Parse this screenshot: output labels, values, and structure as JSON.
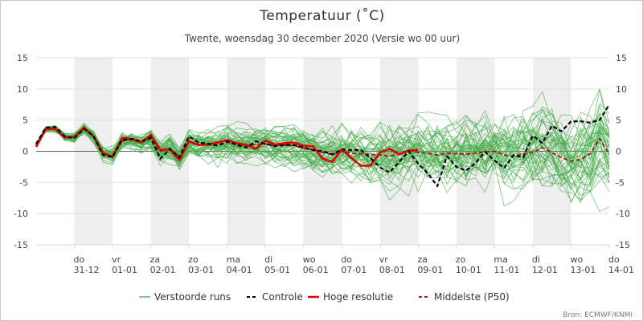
{
  "chart_data": {
    "type": "line",
    "title": "Temperatuur (˚C)",
    "subtitle": "Twente, woensdag 30 december 2020 (Versie wo 00 uur)",
    "credit": "Bron: ECMWF/KNMI",
    "ylim": [
      -15,
      15
    ],
    "yticks": [
      "15",
      "10",
      "5",
      "0",
      "-5",
      "-10",
      "-15"
    ],
    "xlim": [
      0,
      15
    ],
    "grid": "horizontal",
    "legend_position": "bottom",
    "x_axis_days": [
      {
        "day": "do",
        "date": "31-12"
      },
      {
        "day": "vr",
        "date": "01-01"
      },
      {
        "day": "za",
        "date": "02-01"
      },
      {
        "day": "zo",
        "date": "03-01"
      },
      {
        "day": "ma",
        "date": "04-01"
      },
      {
        "day": "di",
        "date": "05-01"
      },
      {
        "day": "wo",
        "date": "06-01"
      },
      {
        "day": "do",
        "date": "07-01"
      },
      {
        "day": "vr",
        "date": "08-01"
      },
      {
        "day": "za",
        "date": "09-01"
      },
      {
        "day": "zo",
        "date": "10-01"
      },
      {
        "day": "ma",
        "date": "11-01"
      },
      {
        "day": "di",
        "date": "12-01"
      },
      {
        "day": "wo",
        "date": "13-01"
      },
      {
        "day": "do",
        "date": "14-01"
      }
    ],
    "colors": {
      "ensemble": "#4caf50",
      "control": "#000000",
      "high_res": "#e00000",
      "median": "#a02020",
      "weekend_shade": "#eeeeee"
    },
    "legend": {
      "ensemble": "Verstoorde runs",
      "control": "Controle",
      "high_res": "Hoge resolutie",
      "median": "Middelste (P50)"
    },
    "series": [
      {
        "name": "Hoge resolutie",
        "x": [
          0,
          0.25,
          0.5,
          0.75,
          1,
          1.25,
          1.5,
          1.75,
          2,
          2.25,
          2.5,
          2.75,
          3,
          3.25,
          3.5,
          3.75,
          4,
          4.25,
          4.5,
          4.75,
          5,
          5.25,
          5.5,
          5.75,
          6,
          6.25,
          6.5,
          6.75,
          7,
          7.25,
          7.5,
          7.75,
          8,
          8.25,
          8.5,
          8.75,
          9,
          9.25,
          9.5,
          9.75,
          10
        ],
        "y": [
          0.7,
          3.6,
          3.6,
          2.2,
          2.3,
          3.8,
          2.4,
          -0.3,
          -0.9,
          2.1,
          2.0,
          1.4,
          2.6,
          0.2,
          0.3,
          -1.4,
          1.6,
          1.0,
          1.1,
          1.4,
          1.8,
          1.3,
          1.0,
          0.4,
          1.7,
          1.1,
          1.3,
          1.4,
          0.9,
          0.8,
          -1.2,
          -1.7,
          0.3,
          -1.1,
          -2.3,
          -2.3,
          -0.2,
          0.4,
          -0.5,
          0.1,
          0.2
        ]
      },
      {
        "name": "Controle",
        "x": [
          0,
          0.25,
          0.5,
          0.75,
          1,
          1.25,
          1.5,
          1.75,
          2,
          2.25,
          2.5,
          2.75,
          3,
          3.25,
          3.5,
          3.75,
          4,
          4.25,
          4.5,
          4.75,
          5,
          5.25,
          5.5,
          5.75,
          6,
          6.25,
          6.5,
          6.75,
          7,
          7.25,
          7.5,
          7.75,
          8,
          8.25,
          8.5,
          8.75,
          9,
          9.25,
          9.5,
          9.75,
          10,
          10.25,
          10.5,
          10.75,
          11,
          11.25,
          11.5,
          11.75,
          12,
          12.25,
          12.5,
          12.75,
          13,
          13.25,
          13.5,
          13.75,
          14,
          14.25,
          14.5,
          14.75,
          15
        ],
        "y": [
          1.2,
          3.8,
          3.9,
          2.4,
          2.1,
          3.6,
          2.5,
          -0.6,
          -0.9,
          1.8,
          2.0,
          1.6,
          2.2,
          -1.2,
          0.4,
          -1.0,
          2.4,
          1.4,
          1.2,
          0.9,
          1.6,
          1.0,
          0.6,
          1.6,
          1.2,
          0.8,
          1.0,
          1.0,
          0.6,
          0.2,
          0.0,
          -0.5,
          0.3,
          0.2,
          0.2,
          -1.1,
          -2.6,
          -3.4,
          -1.7,
          0.0,
          -2.0,
          -3.5,
          -5.6,
          -0.8,
          -2.5,
          -3.1,
          -1.9,
          -0.1,
          -1.5,
          -2.7,
          -0.6,
          -1.0,
          2.5,
          1.3,
          4.1,
          3.2,
          4.8,
          4.8,
          4.6,
          5.0,
          7.5
        ]
      },
      {
        "name": "Middelste (P50)",
        "x": [
          0,
          0.25,
          0.5,
          0.75,
          1,
          1.25,
          1.5,
          1.75,
          2,
          2.25,
          2.5,
          2.75,
          3,
          3.25,
          3.5,
          3.75,
          4,
          4.25,
          4.5,
          4.75,
          5,
          5.25,
          5.5,
          5.75,
          6,
          6.25,
          6.5,
          6.75,
          7,
          7.25,
          7.5,
          7.75,
          8,
          8.25,
          8.5,
          8.75,
          9,
          9.25,
          9.5,
          9.75,
          10,
          10.25,
          10.5,
          10.75,
          11,
          11.25,
          11.5,
          11.75,
          12,
          12.25,
          12.5,
          12.75,
          13,
          13.25,
          13.5,
          13.75,
          14,
          14.25,
          14.5,
          14.75,
          15
        ],
        "y": [
          1.0,
          3.5,
          3.6,
          2.3,
          2.2,
          3.6,
          2.4,
          -0.3,
          -0.7,
          1.7,
          1.8,
          1.4,
          2.0,
          0.0,
          0.4,
          -0.8,
          1.5,
          1.1,
          1.0,
          1.0,
          1.4,
          1.1,
          0.9,
          1.1,
          1.2,
          0.9,
          1.0,
          0.9,
          0.5,
          0.3,
          -0.2,
          -0.5,
          0.0,
          -0.3,
          -0.4,
          -0.5,
          -0.6,
          -0.8,
          -0.4,
          0.1,
          -0.2,
          -0.3,
          -0.6,
          -0.3,
          -0.4,
          -0.5,
          -0.3,
          -0.1,
          0.0,
          -0.6,
          -0.8,
          -0.4,
          -0.2,
          0.6,
          -0.2,
          -1.0,
          -1.6,
          -1.3,
          -0.4,
          2.0,
          -0.5
        ]
      }
    ]
  }
}
